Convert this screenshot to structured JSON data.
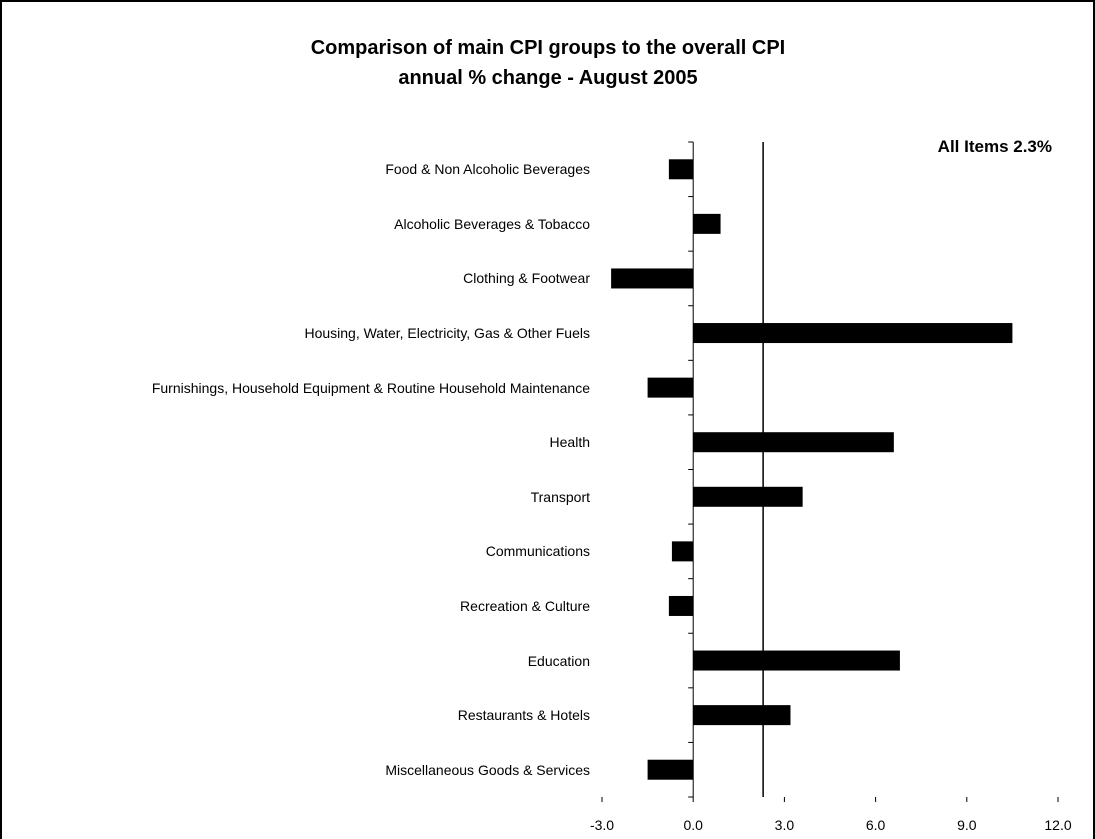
{
  "chart_data": {
    "type": "barh",
    "title": "Comparison of main CPI groups to the overall CPI",
    "subtitle": "annual % change - August 2005",
    "categories": [
      "Food & Non Alcoholic Beverages",
      "Alcoholic Beverages & Tobacco",
      "Clothing & Footwear",
      "Housing, Water, Electricity, Gas & Other Fuels",
      "Furnishings, Household Equipment & Routine Household Maintenance",
      "Health",
      "Transport",
      "Communications",
      "Recreation & Culture",
      "Education",
      "Restaurants & Hotels",
      "Miscellaneous Goods & Services"
    ],
    "values": [
      -0.8,
      0.9,
      -2.7,
      10.5,
      -1.5,
      6.6,
      3.6,
      -0.7,
      -0.8,
      6.8,
      3.2,
      -1.5
    ],
    "color": "#000000",
    "xlim": [
      -3,
      12
    ],
    "xticks": [
      {
        "value": -3,
        "label": "-3.0"
      },
      {
        "value": 0,
        "label": "0.0"
      },
      {
        "value": 3,
        "label": "3.0"
      },
      {
        "value": 6,
        "label": "6.0"
      },
      {
        "value": 9,
        "label": "9.0"
      },
      {
        "value": 12,
        "label": "12.0"
      }
    ],
    "reference_line": {
      "value": 2.3,
      "label": "All Items 2.3%"
    },
    "grid": false
  }
}
